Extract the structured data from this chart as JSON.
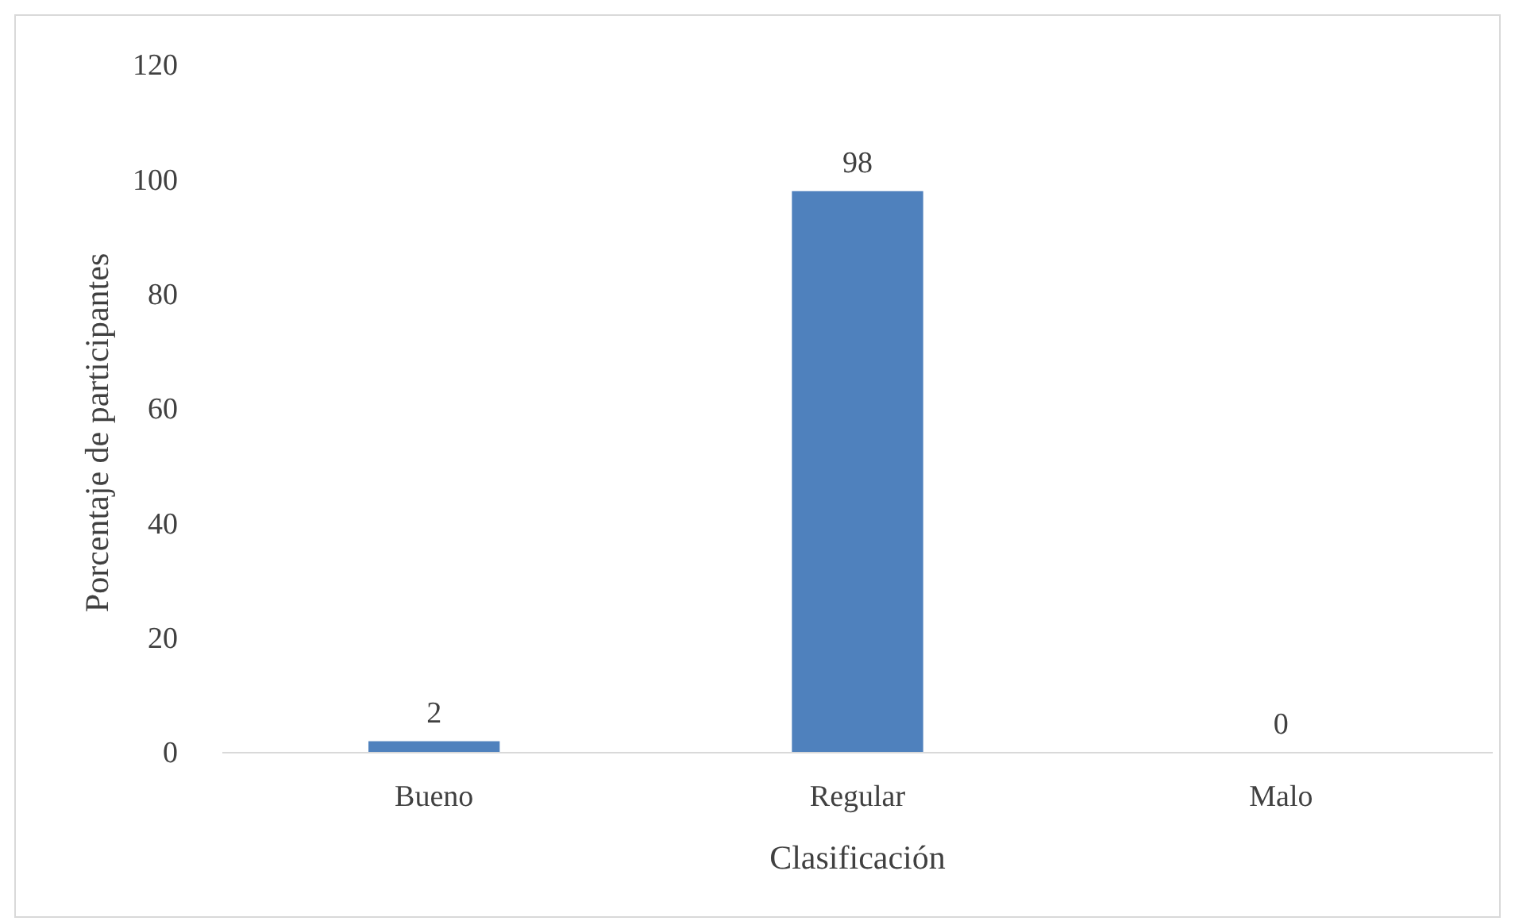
{
  "chart_data": {
    "type": "bar",
    "xlabel": "Clasificación",
    "ylabel": "Porcentaje de participantes",
    "categories": [
      "Bueno",
      "Regular",
      "Malo"
    ],
    "values": [
      2,
      98,
      0
    ],
    "color": "#4f81bd",
    "ylim": [
      0,
      120
    ],
    "yticks": [
      0,
      20,
      40,
      60,
      80,
      100,
      120
    ],
    "grid": false,
    "data_labels": true
  }
}
